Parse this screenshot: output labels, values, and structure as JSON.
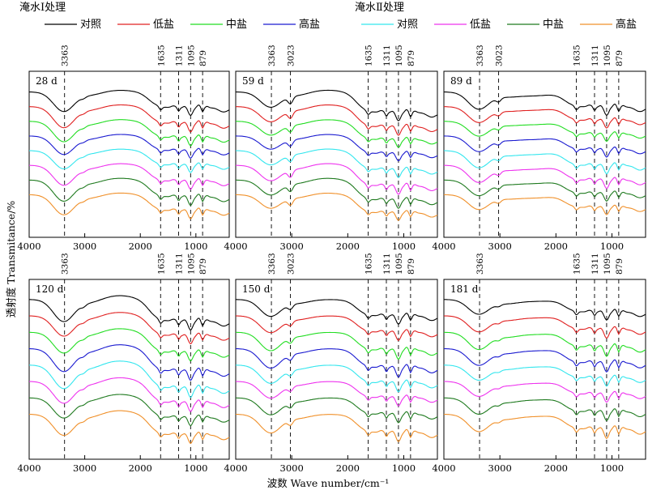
{
  "legend": {
    "group1_title": "淹水Ⅰ处理",
    "group2_title": "淹水Ⅱ处理",
    "group1": [
      {
        "label": "对照",
        "color": "#000000"
      },
      {
        "label": "低盐",
        "color": "#e02020"
      },
      {
        "label": "中盐",
        "color": "#22dd22"
      },
      {
        "label": "高盐",
        "color": "#1a1ad0"
      }
    ],
    "group2": [
      {
        "label": "对照",
        "color": "#33e6ee"
      },
      {
        "label": "低盐",
        "color": "#ee33ee"
      },
      {
        "label": "中盐",
        "color": "#1f7a1f"
      },
      {
        "label": "高盐",
        "color": "#f0902a"
      }
    ]
  },
  "axis": {
    "xlabel": "波数 Wave number/cm⁻¹",
    "ylabel": "透射度 Transmitance/%"
  },
  "chart_data": {
    "type": "line",
    "x_reversed": true,
    "xlim": [
      4000,
      400
    ],
    "xticks": [
      4000,
      3000,
      2000,
      1000
    ],
    "xtick_labels": [
      "4000",
      "3000",
      "2000",
      "1000"
    ],
    "y_ticks_shown": false,
    "series_names": [
      "淹水Ⅰ处理 对照",
      "淹水Ⅰ处理 低盐",
      "淹水Ⅰ处理 中盐",
      "淹水Ⅰ处理 高盐",
      "淹水Ⅱ处理 对照",
      "淹水Ⅱ处理 低盐",
      "淹水Ⅱ处理 中盐",
      "淹水Ⅱ处理 高盐"
    ],
    "panels": [
      {
        "label": "28 d",
        "peaks": [
          "3363",
          "1635",
          "1311",
          "1095",
          "879"
        ]
      },
      {
        "label": "59 d",
        "peaks": [
          "3363",
          "3023",
          "1635",
          "1311",
          "1095",
          "879"
        ]
      },
      {
        "label": "89 d",
        "peaks": [
          "3363",
          "3023",
          "1635",
          "1311",
          "1095",
          "879"
        ]
      },
      {
        "label": "120 d",
        "peaks": [
          "3363",
          "1635",
          "1311",
          "1095",
          "879"
        ]
      },
      {
        "label": "150 d",
        "peaks": [
          "3363",
          "3023",
          "1635",
          "1311",
          "1095",
          "879"
        ]
      },
      {
        "label": "181 d",
        "peaks": [
          "3363",
          "1635",
          "1311",
          "1095",
          "879"
        ]
      }
    ]
  }
}
